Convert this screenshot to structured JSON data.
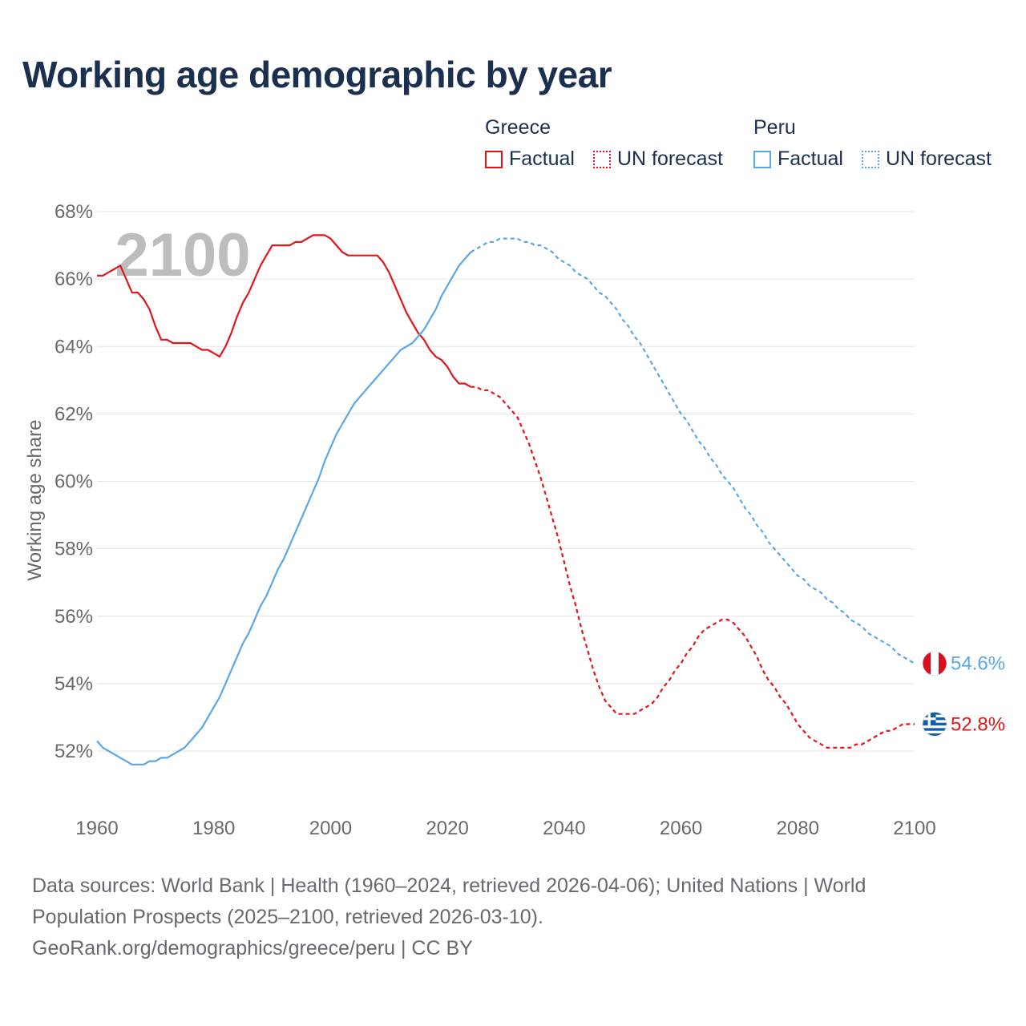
{
  "title": "Working age demographic by year",
  "legend": {
    "groups": [
      {
        "name": "Greece",
        "color": "#e3151a",
        "items": [
          {
            "label": "Factual",
            "style": "solid"
          },
          {
            "label": "UN forecast",
            "style": "dotted"
          }
        ]
      },
      {
        "name": "Peru",
        "color": "#5ba7e6",
        "items": [
          {
            "label": "Factual",
            "style": "solid"
          },
          {
            "label": "UN forecast",
            "style": "dotted"
          }
        ]
      }
    ]
  },
  "footer": {
    "line1": "Data sources: World Bank | Health (1960–2024, retrieved 2026-04-06); United Nations | World",
    "line2": "Population Prospects (2025–2100, retrieved 2026-03-10).",
    "line3": "GeoRank.org/demographics/greece/peru | CC BY"
  },
  "chart_data": {
    "type": "line",
    "title": "Working age demographic by year",
    "xlabel": "",
    "ylabel": "Working age share",
    "xlim": [
      1960,
      2100
    ],
    "ylim": [
      50.2,
      68.2
    ],
    "x_ticks": [
      1960,
      1980,
      2000,
      2020,
      2040,
      2060,
      2080,
      2100
    ],
    "x_tick_labels": [
      "1960",
      "1980",
      "2000",
      "2020",
      "2040",
      "2060",
      "2080",
      "2100"
    ],
    "y_ticks": [
      52,
      54,
      56,
      58,
      60,
      62,
      64,
      66,
      68
    ],
    "y_tick_labels": [
      "52%",
      "54%",
      "56%",
      "58%",
      "60%",
      "62%",
      "64%",
      "66%",
      "68%"
    ],
    "grid": true,
    "year_watermark": "2100",
    "forecast_start": 2024,
    "series": [
      {
        "name": "Greece",
        "color": "#e3151a",
        "end_label": "52.8%",
        "end_icon": "greece-flag-icon",
        "points": [
          [
            1960,
            66.1
          ],
          [
            1961,
            66.1
          ],
          [
            1962,
            66.2
          ],
          [
            1963,
            66.3
          ],
          [
            1964,
            66.4
          ],
          [
            1965,
            66.0
          ],
          [
            1966,
            65.6
          ],
          [
            1967,
            65.6
          ],
          [
            1968,
            65.4
          ],
          [
            1969,
            65.1
          ],
          [
            1970,
            64.6
          ],
          [
            1971,
            64.2
          ],
          [
            1972,
            64.2
          ],
          [
            1973,
            64.1
          ],
          [
            1974,
            64.1
          ],
          [
            1975,
            64.1
          ],
          [
            1976,
            64.1
          ],
          [
            1977,
            64.0
          ],
          [
            1978,
            63.9
          ],
          [
            1979,
            63.9
          ],
          [
            1980,
            63.8
          ],
          [
            1981,
            63.7
          ],
          [
            1982,
            64.0
          ],
          [
            1983,
            64.4
          ],
          [
            1984,
            64.9
          ],
          [
            1985,
            65.3
          ],
          [
            1986,
            65.6
          ],
          [
            1987,
            66.0
          ],
          [
            1988,
            66.4
          ],
          [
            1989,
            66.7
          ],
          [
            1990,
            67.0
          ],
          [
            1991,
            67.0
          ],
          [
            1992,
            67.0
          ],
          [
            1993,
            67.0
          ],
          [
            1994,
            67.1
          ],
          [
            1995,
            67.1
          ],
          [
            1996,
            67.2
          ],
          [
            1997,
            67.3
          ],
          [
            1998,
            67.3
          ],
          [
            1999,
            67.3
          ],
          [
            2000,
            67.2
          ],
          [
            2001,
            67.0
          ],
          [
            2002,
            66.8
          ],
          [
            2003,
            66.7
          ],
          [
            2004,
            66.7
          ],
          [
            2005,
            66.7
          ],
          [
            2006,
            66.7
          ],
          [
            2007,
            66.7
          ],
          [
            2008,
            66.7
          ],
          [
            2009,
            66.5
          ],
          [
            2010,
            66.2
          ],
          [
            2011,
            65.8
          ],
          [
            2012,
            65.4
          ],
          [
            2013,
            65.0
          ],
          [
            2014,
            64.7
          ],
          [
            2015,
            64.4
          ],
          [
            2016,
            64.2
          ],
          [
            2017,
            63.9
          ],
          [
            2018,
            63.7
          ],
          [
            2019,
            63.6
          ],
          [
            2020,
            63.4
          ],
          [
            2021,
            63.1
          ],
          [
            2022,
            62.9
          ],
          [
            2023,
            62.9
          ],
          [
            2024,
            62.8
          ],
          [
            2025,
            62.8
          ],
          [
            2026,
            62.7
          ],
          [
            2027,
            62.7
          ],
          [
            2028,
            62.6
          ],
          [
            2029,
            62.5
          ],
          [
            2030,
            62.3
          ],
          [
            2031,
            62.1
          ],
          [
            2032,
            61.9
          ],
          [
            2033,
            61.5
          ],
          [
            2034,
            61.1
          ],
          [
            2035,
            60.6
          ],
          [
            2036,
            60.1
          ],
          [
            2037,
            59.5
          ],
          [
            2038,
            58.9
          ],
          [
            2039,
            58.3
          ],
          [
            2040,
            57.6
          ],
          [
            2041,
            56.9
          ],
          [
            2042,
            56.3
          ],
          [
            2043,
            55.6
          ],
          [
            2044,
            55.0
          ],
          [
            2045,
            54.4
          ],
          [
            2046,
            53.9
          ],
          [
            2047,
            53.5
          ],
          [
            2048,
            53.3
          ],
          [
            2049,
            53.1
          ],
          [
            2050,
            53.1
          ],
          [
            2051,
            53.1
          ],
          [
            2052,
            53.1
          ],
          [
            2053,
            53.2
          ],
          [
            2054,
            53.3
          ],
          [
            2055,
            53.4
          ],
          [
            2056,
            53.6
          ],
          [
            2057,
            53.9
          ],
          [
            2058,
            54.1
          ],
          [
            2059,
            54.4
          ],
          [
            2060,
            54.6
          ],
          [
            2061,
            54.9
          ],
          [
            2062,
            55.1
          ],
          [
            2063,
            55.4
          ],
          [
            2064,
            55.6
          ],
          [
            2065,
            55.7
          ],
          [
            2066,
            55.8
          ],
          [
            2067,
            55.9
          ],
          [
            2068,
            55.9
          ],
          [
            2069,
            55.8
          ],
          [
            2070,
            55.6
          ],
          [
            2071,
            55.4
          ],
          [
            2072,
            55.1
          ],
          [
            2073,
            54.8
          ],
          [
            2074,
            54.4
          ],
          [
            2075,
            54.1
          ],
          [
            2076,
            53.9
          ],
          [
            2077,
            53.6
          ],
          [
            2078,
            53.4
          ],
          [
            2079,
            53.1
          ],
          [
            2080,
            52.8
          ],
          [
            2081,
            52.6
          ],
          [
            2082,
            52.4
          ],
          [
            2083,
            52.3
          ],
          [
            2084,
            52.2
          ],
          [
            2085,
            52.1
          ],
          [
            2086,
            52.1
          ],
          [
            2087,
            52.1
          ],
          [
            2088,
            52.1
          ],
          [
            2089,
            52.1
          ],
          [
            2090,
            52.2
          ],
          [
            2091,
            52.2
          ],
          [
            2092,
            52.3
          ],
          [
            2093,
            52.4
          ],
          [
            2094,
            52.5
          ],
          [
            2095,
            52.6
          ],
          [
            2096,
            52.6
          ],
          [
            2097,
            52.7
          ],
          [
            2098,
            52.8
          ],
          [
            2099,
            52.8
          ],
          [
            2100,
            52.8
          ]
        ]
      },
      {
        "name": "Peru",
        "color": "#5ba7e6",
        "end_label": "54.6%",
        "end_icon": "peru-flag-icon",
        "points": [
          [
            1960,
            52.3
          ],
          [
            1961,
            52.1
          ],
          [
            1962,
            52.0
          ],
          [
            1963,
            51.9
          ],
          [
            1964,
            51.8
          ],
          [
            1965,
            51.7
          ],
          [
            1966,
            51.6
          ],
          [
            1967,
            51.6
          ],
          [
            1968,
            51.6
          ],
          [
            1969,
            51.7
          ],
          [
            1970,
            51.7
          ],
          [
            1971,
            51.8
          ],
          [
            1972,
            51.8
          ],
          [
            1973,
            51.9
          ],
          [
            1974,
            52.0
          ],
          [
            1975,
            52.1
          ],
          [
            1976,
            52.3
          ],
          [
            1977,
            52.5
          ],
          [
            1978,
            52.7
          ],
          [
            1979,
            53.0
          ],
          [
            1980,
            53.3
          ],
          [
            1981,
            53.6
          ],
          [
            1982,
            54.0
          ],
          [
            1983,
            54.4
          ],
          [
            1984,
            54.8
          ],
          [
            1985,
            55.2
          ],
          [
            1986,
            55.5
          ],
          [
            1987,
            55.9
          ],
          [
            1988,
            56.3
          ],
          [
            1989,
            56.6
          ],
          [
            1990,
            57.0
          ],
          [
            1991,
            57.4
          ],
          [
            1992,
            57.7
          ],
          [
            1993,
            58.1
          ],
          [
            1994,
            58.5
          ],
          [
            1995,
            58.9
          ],
          [
            1996,
            59.3
          ],
          [
            1997,
            59.7
          ],
          [
            1998,
            60.1
          ],
          [
            1999,
            60.6
          ],
          [
            2000,
            61.0
          ],
          [
            2001,
            61.4
          ],
          [
            2002,
            61.7
          ],
          [
            2003,
            62.0
          ],
          [
            2004,
            62.3
          ],
          [
            2005,
            62.5
          ],
          [
            2006,
            62.7
          ],
          [
            2007,
            62.9
          ],
          [
            2008,
            63.1
          ],
          [
            2009,
            63.3
          ],
          [
            2010,
            63.5
          ],
          [
            2011,
            63.7
          ],
          [
            2012,
            63.9
          ],
          [
            2013,
            64.0
          ],
          [
            2014,
            64.1
          ],
          [
            2015,
            64.3
          ],
          [
            2016,
            64.5
          ],
          [
            2017,
            64.8
          ],
          [
            2018,
            65.1
          ],
          [
            2019,
            65.5
          ],
          [
            2020,
            65.8
          ],
          [
            2021,
            66.1
          ],
          [
            2022,
            66.4
          ],
          [
            2023,
            66.6
          ],
          [
            2024,
            66.8
          ],
          [
            2025,
            66.9
          ],
          [
            2026,
            67.0
          ],
          [
            2027,
            67.1
          ],
          [
            2028,
            67.1
          ],
          [
            2029,
            67.2
          ],
          [
            2030,
            67.2
          ],
          [
            2031,
            67.2
          ],
          [
            2032,
            67.2
          ],
          [
            2033,
            67.1
          ],
          [
            2034,
            67.1
          ],
          [
            2035,
            67.0
          ],
          [
            2036,
            67.0
          ],
          [
            2037,
            66.9
          ],
          [
            2038,
            66.8
          ],
          [
            2039,
            66.6
          ],
          [
            2040,
            66.5
          ],
          [
            2041,
            66.4
          ],
          [
            2042,
            66.2
          ],
          [
            2043,
            66.1
          ],
          [
            2044,
            66.0
          ],
          [
            2045,
            65.8
          ],
          [
            2046,
            65.6
          ],
          [
            2047,
            65.5
          ],
          [
            2048,
            65.3
          ],
          [
            2049,
            65.1
          ],
          [
            2050,
            64.8
          ],
          [
            2051,
            64.6
          ],
          [
            2052,
            64.3
          ],
          [
            2053,
            64.1
          ],
          [
            2054,
            63.8
          ],
          [
            2055,
            63.5
          ],
          [
            2056,
            63.2
          ],
          [
            2057,
            62.9
          ],
          [
            2058,
            62.6
          ],
          [
            2059,
            62.3
          ],
          [
            2060,
            62.0
          ],
          [
            2061,
            61.8
          ],
          [
            2062,
            61.5
          ],
          [
            2063,
            61.2
          ],
          [
            2064,
            61.0
          ],
          [
            2065,
            60.7
          ],
          [
            2066,
            60.5
          ],
          [
            2067,
            60.2
          ],
          [
            2068,
            60.0
          ],
          [
            2069,
            59.8
          ],
          [
            2070,
            59.5
          ],
          [
            2071,
            59.2
          ],
          [
            2072,
            59.0
          ],
          [
            2073,
            58.7
          ],
          [
            2074,
            58.5
          ],
          [
            2075,
            58.2
          ],
          [
            2076,
            58.0
          ],
          [
            2077,
            57.8
          ],
          [
            2078,
            57.6
          ],
          [
            2079,
            57.4
          ],
          [
            2080,
            57.2
          ],
          [
            2081,
            57.1
          ],
          [
            2082,
            56.9
          ],
          [
            2083,
            56.8
          ],
          [
            2084,
            56.7
          ],
          [
            2085,
            56.5
          ],
          [
            2086,
            56.4
          ],
          [
            2087,
            56.2
          ],
          [
            2088,
            56.1
          ],
          [
            2089,
            55.9
          ],
          [
            2090,
            55.8
          ],
          [
            2091,
            55.7
          ],
          [
            2092,
            55.5
          ],
          [
            2093,
            55.4
          ],
          [
            2094,
            55.3
          ],
          [
            2095,
            55.2
          ],
          [
            2096,
            55.1
          ],
          [
            2097,
            54.9
          ],
          [
            2098,
            54.8
          ],
          [
            2099,
            54.7
          ],
          [
            2100,
            54.6
          ]
        ]
      }
    ]
  }
}
